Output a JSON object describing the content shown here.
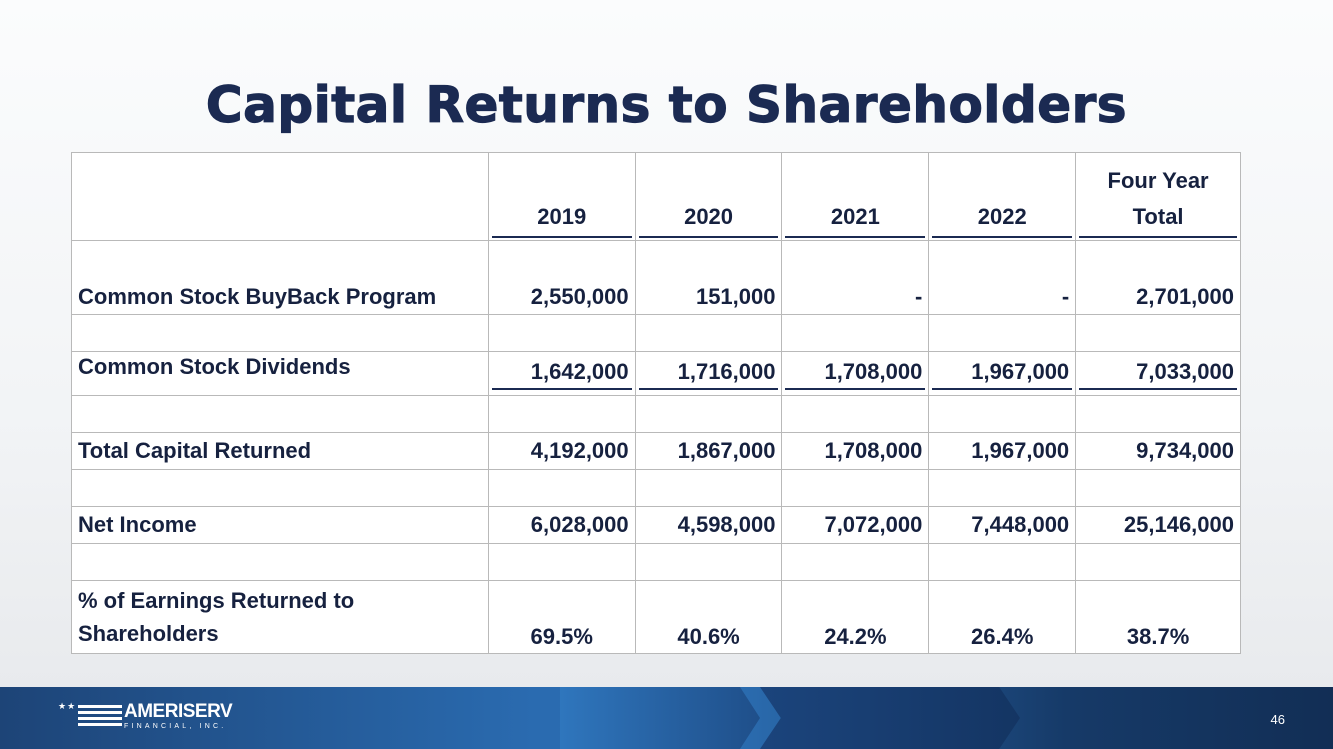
{
  "title": "Capital Returns to Shareholders",
  "table": {
    "headers": [
      "",
      "2019",
      "2020",
      "2021",
      "2022",
      "Four Year",
      "Total"
    ],
    "rows": {
      "buyback": {
        "label": "Common Stock BuyBack Program",
        "values": [
          "2,550,000",
          "151,000",
          "-",
          "-",
          "2,701,000"
        ]
      },
      "dividends": {
        "label": "Common Stock Dividends",
        "values": [
          "1,642,000",
          "1,716,000",
          "1,708,000",
          "1,967,000",
          "7,033,000"
        ]
      },
      "total": {
        "label": "Total Capital Returned",
        "values": [
          "4,192,000",
          "1,867,000",
          "1,708,000",
          "1,967,000",
          "9,734,000"
        ]
      },
      "net_income": {
        "label": "Net Income",
        "values": [
          "6,028,000",
          "4,598,000",
          "7,072,000",
          "7,448,000",
          "25,146,000"
        ]
      },
      "pct": {
        "label_line1": "% of Earnings Returned to",
        "label_line2": "Shareholders",
        "values": [
          "69.5%",
          "40.6%",
          "24.2%",
          "26.4%",
          "38.7%"
        ]
      }
    }
  },
  "footer": {
    "logo_name": "AMERISERV",
    "logo_sub": "FINANCIAL, INC.",
    "logo_stars": "★★",
    "page_number": "46"
  },
  "colors": {
    "title": "#1b2a52",
    "text": "#16213f",
    "footer_accent": "#2a6bb0"
  }
}
